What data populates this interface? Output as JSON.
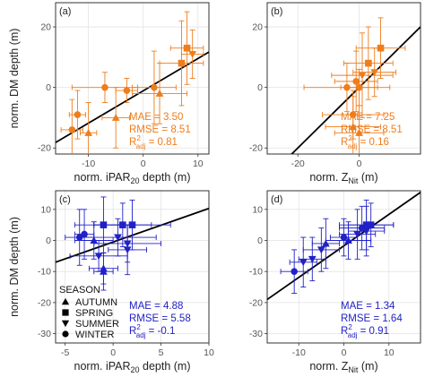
{
  "figure_colors": {
    "orange": "#ee7d1c",
    "blue": "#2121c8",
    "fit": "#000000",
    "grid": "#e3e3e3"
  },
  "legend": {
    "title": "SEASON",
    "entries": [
      {
        "label": "AUTUMN",
        "shape": "triangle-up"
      },
      {
        "label": "SPRING",
        "shape": "square"
      },
      {
        "label": "SUMMER",
        "shape": "triangle-down"
      },
      {
        "label": "WINTER",
        "shape": "circle"
      }
    ]
  },
  "chart_data": [
    {
      "panel_label": "(a)",
      "type": "scatter",
      "color": "#ee7d1c",
      "xlabel": "norm. iPAR",
      "xlabel_sub": "20",
      "xlabel_rest": " depth (m)",
      "ylabel": "norm. DM depth (m)",
      "xlim": [
        -16,
        12
      ],
      "ylim": [
        -22,
        28
      ],
      "xticks": [
        -10,
        0,
        10
      ],
      "yticks": [
        -20,
        0,
        20
      ],
      "fit_line": {
        "x": [
          -16,
          12
        ],
        "y": [
          -18.2,
          11.7
        ]
      },
      "stats": {
        "mae": "MAE = 3.50",
        "rmse": "RMSE = 8.51",
        "r2_prefix": "R",
        "r2_value": " = 0.81",
        "sub": "adj"
      },
      "points": [
        {
          "x": -13,
          "y": -14,
          "xerr": 2,
          "yerr": 10,
          "shape": "circle"
        },
        {
          "x": -12,
          "y": -9,
          "xerr": 1.5,
          "yerr": 8,
          "shape": "circle"
        },
        {
          "x": -10,
          "y": -15,
          "xerr": 1.5,
          "yerr": 10,
          "shape": "triangle-up"
        },
        {
          "x": -5,
          "y": -10,
          "xerr": 2.5,
          "yerr": 10,
          "shape": "triangle-up"
        },
        {
          "x": -7,
          "y": 0,
          "xerr": 6,
          "yerr": 5,
          "shape": "circle"
        },
        {
          "x": -3,
          "y": -1,
          "xerr": 2,
          "yerr": 4,
          "shape": "circle"
        },
        {
          "x": 2,
          "y": 0,
          "xerr": 4,
          "yerr": 12,
          "shape": "circle"
        },
        {
          "x": 3,
          "y": -2,
          "xerr": 5,
          "yerr": 10,
          "shape": "triangle-up"
        },
        {
          "x": 7,
          "y": 8,
          "xerr": 4,
          "yerr": 14,
          "shape": "square"
        },
        {
          "x": 8,
          "y": 13,
          "xerr": 3,
          "yerr": 12,
          "shape": "square"
        },
        {
          "x": 9,
          "y": 11,
          "xerr": 2,
          "yerr": 8,
          "shape": "triangle-down"
        }
      ]
    },
    {
      "panel_label": "(b)",
      "type": "scatter",
      "color": "#ee7d1c",
      "xlabel": "norm. Z",
      "xlabel_sub": "Nit",
      "xlabel_rest": " (m)",
      "ylabel": "",
      "xlim": [
        -30,
        20
      ],
      "ylim": [
        -22,
        28
      ],
      "xticks": [
        -20,
        0
      ],
      "yticks": [
        -20,
        0,
        20
      ],
      "fit_line": {
        "x": [
          -30,
          20
        ],
        "y": [
          -30,
          20
        ]
      },
      "stats": {
        "mae": "MAE = 7.25",
        "rmse": "RMSE = 8.51",
        "r2_prefix": "R",
        "r2_value": " = 0.16",
        "sub": "adj"
      },
      "points": [
        {
          "x": -4,
          "y": 0,
          "xerr": 14,
          "yerr": 8,
          "shape": "circle"
        },
        {
          "x": -2,
          "y": -9,
          "xerr": 10,
          "yerr": 8,
          "shape": "circle"
        },
        {
          "x": -2,
          "y": -13,
          "xerr": 9,
          "yerr": 10,
          "shape": "triangle-up"
        },
        {
          "x": 0,
          "y": -15,
          "xerr": 8,
          "yerr": 9,
          "shape": "triangle-up"
        },
        {
          "x": -1,
          "y": 2,
          "xerr": 7,
          "yerr": 10,
          "shape": "circle"
        },
        {
          "x": 0,
          "y": 0,
          "xerr": 6,
          "yerr": 6,
          "shape": "circle"
        },
        {
          "x": 1,
          "y": 4,
          "xerr": 10,
          "yerr": 14,
          "shape": "triangle-down"
        },
        {
          "x": 3,
          "y": 8,
          "xerr": 8,
          "yerr": 12,
          "shape": "square"
        },
        {
          "x": 5,
          "y": 5,
          "xerr": 7,
          "yerr": 8,
          "shape": "triangle-down"
        },
        {
          "x": 7,
          "y": 13,
          "xerr": 8,
          "yerr": 10,
          "shape": "square"
        }
      ]
    },
    {
      "panel_label": "(c)",
      "type": "scatter",
      "color": "#2121c8",
      "xlabel": "norm. iPAR",
      "xlabel_sub": "20",
      "xlabel_rest": " depth (m)",
      "ylabel": "norm. DM depth (m)",
      "xlim": [
        -6,
        10
      ],
      "ylim": [
        -33,
        16
      ],
      "xticks": [
        -5,
        0,
        5,
        10
      ],
      "yticks": [
        -30,
        -20,
        -10,
        0,
        10
      ],
      "fit_line": {
        "x": [
          -6,
          10
        ],
        "y": [
          -7,
          10.3
        ]
      },
      "stats": {
        "mae": "MAE = 4.88",
        "rmse": "RMSE = 5.58",
        "r2_prefix": "R",
        "r2_value": " = -0.1",
        "sub": "adj"
      },
      "points": [
        {
          "x": -3.5,
          "y": 1,
          "xerr": 1.5,
          "yerr": 9,
          "shape": "circle"
        },
        {
          "x": -3,
          "y": 2,
          "xerr": 1,
          "yerr": 8,
          "shape": "circle"
        },
        {
          "x": -2,
          "y": 0,
          "xerr": 2,
          "yerr": 6,
          "shape": "triangle-up"
        },
        {
          "x": -1,
          "y": 5,
          "xerr": 3,
          "yerr": 9,
          "shape": "square"
        },
        {
          "x": 0.5,
          "y": 1,
          "xerr": 4,
          "yerr": 6,
          "shape": "triangle-down"
        },
        {
          "x": 1,
          "y": 5,
          "xerr": 3,
          "yerr": 7,
          "shape": "square"
        },
        {
          "x": 1.5,
          "y": -3,
          "xerr": 2,
          "yerr": 8,
          "shape": "triangle-down"
        },
        {
          "x": 2,
          "y": 5,
          "xerr": 4,
          "yerr": 8,
          "shape": "square"
        },
        {
          "x": 1.5,
          "y": -1,
          "xerr": 3.5,
          "yerr": 6,
          "shape": "triangle-down"
        },
        {
          "x": -1.5,
          "y": -5,
          "xerr": 3,
          "yerr": 5,
          "shape": "triangle-down"
        },
        {
          "x": -1,
          "y": -9,
          "xerr": 1.5,
          "yerr": 5,
          "shape": "triangle-up"
        },
        {
          "x": -1,
          "y": -10,
          "xerr": 1,
          "yerr": 6,
          "shape": "triangle-up"
        }
      ]
    },
    {
      "panel_label": "(d)",
      "type": "scatter",
      "color": "#2121c8",
      "xlabel": "norm. Z",
      "xlabel_sub": "Nit",
      "xlabel_rest": " (m)",
      "ylabel": "",
      "xlim": [
        -17,
        17
      ],
      "ylim": [
        -33,
        16
      ],
      "xticks": [
        -10,
        0,
        10
      ],
      "yticks": [
        -30,
        -20,
        -10,
        0,
        10
      ],
      "fit_line": {
        "x": [
          -17,
          17
        ],
        "y": [
          -19,
          15.5
        ]
      },
      "stats": {
        "mae": "MAE = 1.34",
        "rmse": "RMSE = 1.64",
        "r2_prefix": "R",
        "r2_value": " = 0.91",
        "sub": "adj"
      },
      "points": [
        {
          "x": -11,
          "y": -10,
          "xerr": 3,
          "yerr": 7,
          "shape": "circle"
        },
        {
          "x": -9,
          "y": -7,
          "xerr": 3,
          "yerr": 8,
          "shape": "triangle-down"
        },
        {
          "x": -7,
          "y": -6,
          "xerr": 3,
          "yerr": 7,
          "shape": "triangle-down"
        },
        {
          "x": -5,
          "y": -3,
          "xerr": 4,
          "yerr": 7,
          "shape": "triangle-down"
        },
        {
          "x": -4,
          "y": -1,
          "xerr": 3,
          "yerr": 8,
          "shape": "triangle-up"
        },
        {
          "x": 0,
          "y": 1,
          "xerr": 3,
          "yerr": 6,
          "shape": "circle"
        },
        {
          "x": 1,
          "y": 0,
          "xerr": 5,
          "yerr": 6,
          "shape": "triangle-up"
        },
        {
          "x": 3,
          "y": 2,
          "xerr": 4,
          "yerr": 8,
          "shape": "triangle-down"
        },
        {
          "x": 4,
          "y": 4,
          "xerr": 5,
          "yerr": 7,
          "shape": "circle"
        },
        {
          "x": 5,
          "y": 5,
          "xerr": 6,
          "yerr": 8,
          "shape": "square"
        },
        {
          "x": 6,
          "y": 5,
          "xerr": 5,
          "yerr": 7,
          "shape": "square"
        },
        {
          "x": 5,
          "y": 3,
          "xerr": 4,
          "yerr": 8,
          "shape": "triangle-down"
        }
      ]
    }
  ]
}
